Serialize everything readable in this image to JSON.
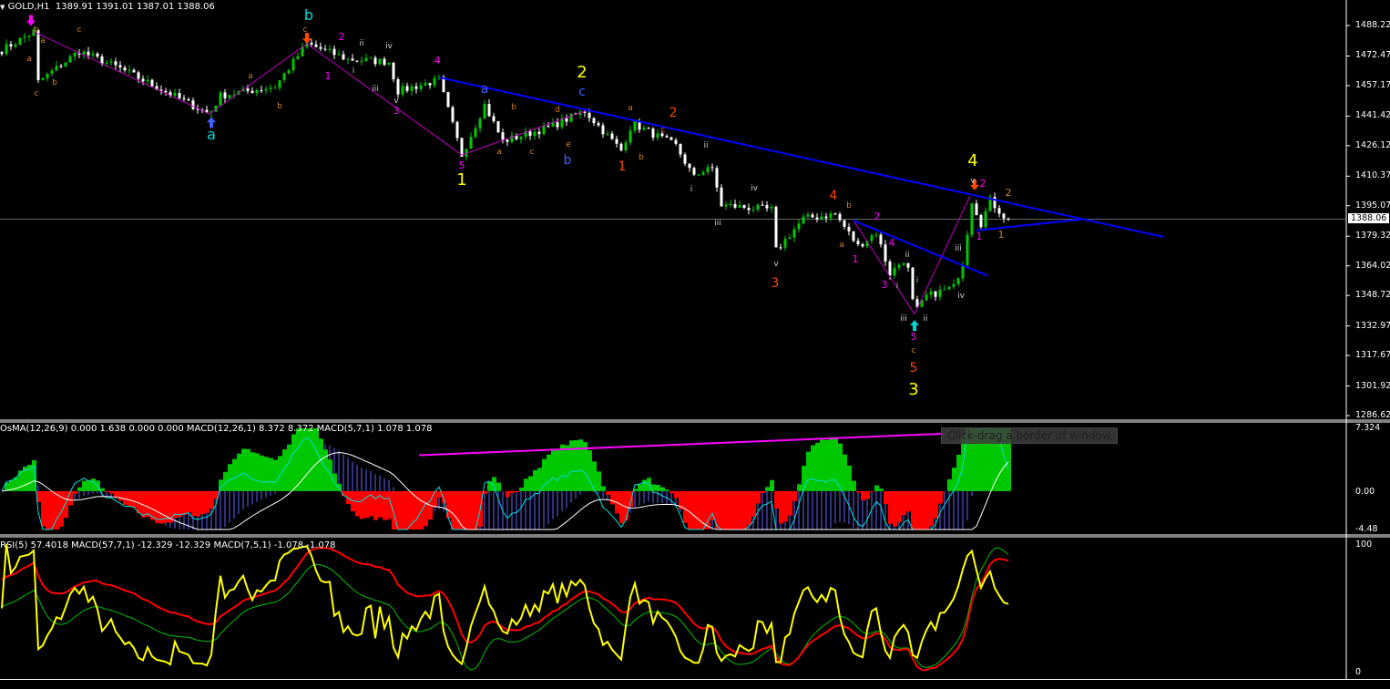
{
  "header": {
    "symbol": "GOLD,H1",
    "ohlc": "1389.91 1391.01 1387.01 1388.06"
  },
  "price_axis": {
    "ticks": [
      1488.22,
      1472.47,
      1457.17,
      1441.42,
      1426.12,
      1410.37,
      1395.07,
      1379.32,
      1364.02,
      1348.72,
      1332.97,
      1317.67,
      1301.92,
      1286.62
    ],
    "current": "1388.06",
    "range": [
      1286.62,
      1488.22
    ]
  },
  "osma_panel": {
    "label": "OsMA(12,26,9) 0.000 1.638 0.000 0.000  MACD(12,26,1) 8.372 8.372  MACD(5,7,1) 1.078 1.078",
    "ticks": [
      "7.324",
      "0.00",
      "-4.48"
    ],
    "range": [
      -4.48,
      7.324
    ],
    "trendline": [
      [
        91.6,
        4.19
      ],
      [
        207,
        6.7
      ]
    ]
  },
  "rsi_panel": {
    "label": "RSI(5) 57.4018  MACD(57,7,1) -12.329 -12.329  MACD(7,5,1) -1.078 -1.078",
    "ticks": [
      "100",
      "0"
    ]
  },
  "tooltip": "Click-drag a border of window",
  "colors": {
    "bull": "#00c800",
    "bear": "#ffffff",
    "trend": "#0000ff",
    "wave": "#c000c0",
    "yellow": "#ffff00",
    "orangered": "#ff4500",
    "cyan": "#00d8d8",
    "magenta": "#ff00ff",
    "orange": "#d08020",
    "white": "#d0d0d0",
    "blue": "#4060ff",
    "rsi": "#ffff00",
    "macd57": "#ff0000",
    "macd75": "#00c000",
    "osma_pos": "#00c800",
    "osma_neg": "#ff0000",
    "macd_hist": "#6060ff",
    "macd_fast": "#00e0e0"
  },
  "price_path": [
    [
      0,
      1475.5
    ],
    [
      7,
      1485
    ],
    [
      8,
      1459
    ],
    [
      17,
      1475
    ],
    [
      26,
      1466
    ],
    [
      45.6,
      1442.5
    ],
    [
      48,
      1452
    ],
    [
      60,
      1456.7
    ],
    [
      67,
      1478.8
    ],
    [
      76,
      1470.8
    ],
    [
      85,
      1469.4
    ],
    [
      87,
      1454.3
    ],
    [
      96,
      1460
    ],
    [
      101,
      1421.3
    ],
    [
      106,
      1447.2
    ],
    [
      110,
      1428.4
    ],
    [
      120,
      1435.5
    ],
    [
      128,
      1444
    ],
    [
      136,
      1423.7
    ],
    [
      138.4,
      1437.8
    ],
    [
      148,
      1426
    ],
    [
      152,
      1409.6
    ],
    [
      155.6,
      1416.6
    ],
    [
      158,
      1395.4
    ],
    [
      169,
      1393
    ],
    [
      170,
      1371.9
    ],
    [
      176,
      1388.4
    ],
    [
      183,
      1390.7
    ],
    [
      188,
      1374.2
    ],
    [
      192,
      1381.3
    ],
    [
      195,
      1360
    ],
    [
      198.6,
      1368.6
    ],
    [
      200.4,
      1339
    ],
    [
      203,
      1348.3
    ],
    [
      209,
      1353
    ],
    [
      211.6,
      1369.5
    ],
    [
      212.6,
      1400.2
    ],
    [
      215,
      1386
    ],
    [
      217,
      1397.8
    ],
    [
      220.6,
      1388.1
    ]
  ],
  "trendlines": [
    [
      [
        96,
        1461.4
      ],
      [
        255,
        1379
      ]
    ],
    [
      [
        187,
        1387.4
      ],
      [
        216.4,
        1359
      ]
    ],
    [
      [
        214,
        1382.3
      ],
      [
        237,
        1388
      ]
    ]
  ],
  "wave_lines": [
    [
      [
        7,
        1485
      ],
      [
        45.6,
        1442.5
      ],
      [
        67,
        1478.8
      ],
      [
        101,
        1421.3
      ],
      [
        128,
        1444
      ]
    ],
    [
      [
        187,
        1387.4
      ],
      [
        200.4,
        1339
      ],
      [
        212.6,
        1400.2
      ]
    ]
  ],
  "markers": [
    [
      6.4,
      1488,
      "down",
      "magenta"
    ],
    [
      67,
      1478.8,
      "down",
      "orangered"
    ],
    [
      46,
      1441,
      "up",
      "blue"
    ],
    [
      200.4,
      1336,
      "up",
      "cyan"
    ],
    [
      213.6,
      1403,
      "down",
      "orangered"
    ]
  ],
  "wave_labels": [
    [
      46,
      1429.3,
      "a",
      "cyan",
      16
    ],
    [
      67.4,
      1491.0,
      "b",
      "cyan",
      16
    ],
    [
      127.4,
      1461.4,
      "2",
      "yellow",
      18
    ],
    [
      127.4,
      1451.9,
      "c",
      "blue",
      14
    ],
    [
      106,
      1453.3,
      "a",
      "blue",
      14
    ],
    [
      124.2,
      1416.6,
      "b",
      "blue",
      14
    ],
    [
      101,
      1405.8,
      "1",
      "yellow",
      18
    ],
    [
      101,
      1414.3,
      "5",
      "magenta",
      11
    ],
    [
      95.6,
      1468.4,
      "4",
      "magenta",
      11
    ],
    [
      86.6,
      1442.5,
      "3",
      "magenta",
      11
    ],
    [
      74.6,
      1480.7,
      "2",
      "magenta",
      11
    ],
    [
      71.6,
      1460.4,
      "1",
      "magenta",
      11
    ],
    [
      79,
      1477.8,
      "ii",
      "white",
      9
    ],
    [
      85,
      1476.4,
      "iv",
      "white",
      9
    ],
    [
      77.2,
      1463.7,
      "i",
      "white",
      9
    ],
    [
      82,
      1454.3,
      "iii",
      "white",
      9
    ],
    [
      86.6,
      1448.2,
      "v",
      "white",
      9
    ],
    [
      17,
      1484.9,
      "c",
      "orange",
      9
    ],
    [
      7.6,
      1484.9,
      "b",
      "orange",
      9
    ],
    [
      6,
      1469.8,
      "a",
      "orange",
      9
    ],
    [
      7.6,
      1451.9,
      "c",
      "orange",
      9
    ],
    [
      11.6,
      1457.6,
      "b",
      "orange",
      9
    ],
    [
      9,
      1479.3,
      "a",
      "orange",
      9
    ],
    [
      54.6,
      1460.9,
      "a",
      "orange",
      9
    ],
    [
      61,
      1445.3,
      "b",
      "orange",
      9
    ],
    [
      66.6,
      1484.9,
      "c",
      "orange",
      9
    ],
    [
      109.2,
      1421.8,
      "a",
      "orange",
      9
    ],
    [
      112.4,
      1444.9,
      "b",
      "orange",
      9
    ],
    [
      116.4,
      1421.8,
      "c",
      "orange",
      9
    ],
    [
      122,
      1443.5,
      "d",
      "orange",
      9
    ],
    [
      124.4,
      1425.6,
      "e",
      "orange",
      9
    ],
    [
      138,
      1444.4,
      "a",
      "orange",
      9
    ],
    [
      145.2,
      1433.1,
      "c",
      "orange",
      9
    ],
    [
      140.4,
      1419,
      "b",
      "orange",
      9
    ],
    [
      147.4,
      1441.1,
      "2",
      "orangered",
      14
    ],
    [
      136.2,
      1413.3,
      "1",
      "orangered",
      14
    ],
    [
      154.6,
      1425.1,
      "ii",
      "white",
      9
    ],
    [
      151.4,
      1402.5,
      "i",
      "white",
      9
    ],
    [
      157.2,
      1385.1,
      "iii",
      "white",
      9
    ],
    [
      165.2,
      1402.9,
      "iv",
      "white",
      9
    ],
    [
      170,
      1363.9,
      "v",
      "white",
      9
    ],
    [
      169.8,
      1353,
      "3",
      "orangered",
      14
    ],
    [
      182.6,
      1398.2,
      "4",
      "orangered",
      14
    ],
    [
      186,
      1394,
      "b",
      "orange",
      9
    ],
    [
      184.4,
      1373.7,
      "a",
      "orange",
      9
    ],
    [
      192.2,
      1387.9,
      "2",
      "magenta",
      11
    ],
    [
      187.4,
      1365.7,
      "1",
      "magenta",
      11
    ],
    [
      195.4,
      1374.2,
      "4",
      "magenta",
      11
    ],
    [
      193.8,
      1352.6,
      "3",
      "magenta",
      11
    ],
    [
      196.6,
      1352.6,
      "i",
      "white",
      9
    ],
    [
      198.8,
      1368.6,
      "ii",
      "white",
      9
    ],
    [
      198,
      1335.6,
      "iii",
      "white",
      9
    ],
    [
      200.2,
      1325.7,
      "5",
      "magenta",
      11
    ],
    [
      200.2,
      1319.1,
      "c",
      "orange",
      9
    ],
    [
      200.2,
      1309.2,
      "5",
      "orangered",
      14
    ],
    [
      200.2,
      1297.4,
      "3",
      "yellow",
      18
    ],
    [
      202.8,
      1335.6,
      "ii",
      "white",
      9
    ],
    [
      201,
      1355.4,
      "i",
      "white",
      9
    ],
    [
      210,
      1371.9,
      "iii",
      "white",
      9
    ],
    [
      210.6,
      1347.4,
      "iv",
      "white",
      9
    ],
    [
      213.2,
      1415.7,
      "4",
      "yellow",
      18
    ],
    [
      213.2,
      1406.7,
      "v",
      "white",
      9
    ],
    [
      215.4,
      1404.8,
      "2",
      "magenta",
      11
    ],
    [
      214.6,
      1377.5,
      "1",
      "magenta",
      11
    ],
    [
      221,
      1400.1,
      "2",
      "orange",
      11
    ],
    [
      219.4,
      1378.5,
      "1",
      "orange",
      11
    ]
  ]
}
